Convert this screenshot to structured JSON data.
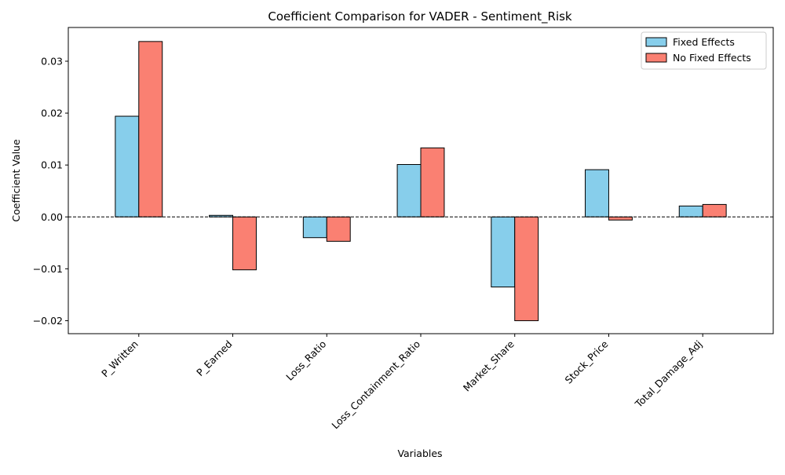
{
  "chart_data": {
    "type": "bar",
    "title": "Coefficient Comparison for VADER - Sentiment_Risk",
    "xlabel": "Variables",
    "ylabel": "Coefficient Value",
    "categories": [
      "P_Written",
      "P_Earned",
      "Loss_Ratio",
      "Loss_Containment_Ratio",
      "Market_Share",
      "Stock_Price",
      "Total_Damage_Adj"
    ],
    "series": [
      {
        "name": "Fixed Effects",
        "color": "#87CEEB",
        "values": [
          0.0194,
          0.0003,
          -0.004,
          0.0101,
          -0.0135,
          0.0091,
          0.0021
        ]
      },
      {
        "name": "No Fixed Effects",
        "color": "#FA8072",
        "values": [
          0.0338,
          -0.0102,
          -0.0047,
          0.0133,
          -0.02,
          -0.0006,
          0.0024
        ]
      }
    ],
    "ylim": [
      -0.0225,
      0.0365
    ],
    "yticks": [
      -0.02,
      -0.01,
      0.0,
      0.01,
      0.02,
      0.03
    ],
    "ytick_labels": [
      "−0.02",
      "−0.01",
      "0.00",
      "0.01",
      "0.02",
      "0.03"
    ],
    "zero_line": "dashed",
    "grid": false,
    "legend_position": "top-right"
  }
}
